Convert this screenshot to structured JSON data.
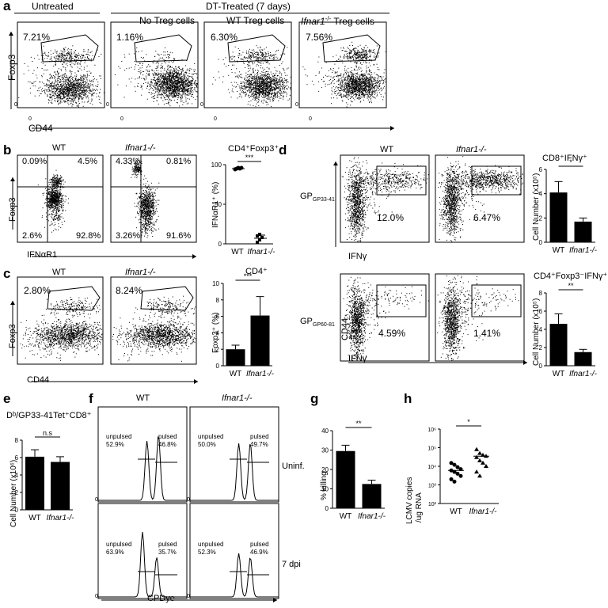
{
  "letters": {
    "a": "a",
    "b": "b",
    "c": "c",
    "d": "d",
    "e": "e",
    "f": "f",
    "g": "g",
    "h": "h"
  },
  "panel_a": {
    "header_untreated": "Untreated",
    "header_dt": "DT-Treated (7 days)",
    "sub1": "No Treg cells",
    "sub2": "WT Treg cells",
    "sub3_prefix": "Ifnar1",
    "sub3_sup": "-/-",
    "sub3_suffix": " Treg cells",
    "pct": [
      "7.21%",
      "1.16%",
      "6.30%",
      "7.56%"
    ],
    "yaxis": "Foxp3",
    "xaxis": "CD44",
    "tick0": "0"
  },
  "panel_b": {
    "titles": [
      "WT",
      "Ifnar1-/-"
    ],
    "quad_wt": [
      "0.09%",
      "4.5%",
      "2.6%",
      "92.8%"
    ],
    "quad_ko": [
      "4.33%",
      "0.81%",
      "3.26%",
      "91.6%"
    ],
    "yaxis": "Foxp3",
    "xaxis": "IFNαR1",
    "bar_title": "CD4⁺Foxp3⁺",
    "bar_ylabel": "IFNαR1⁺ (%)",
    "sig": "***",
    "ticks": [
      "0",
      "50",
      "100"
    ],
    "cat_wt": "WT",
    "cat_ko": "Ifnar1-/-"
  },
  "panel_c": {
    "titles": [
      "WT",
      "Ifnar1-/-"
    ],
    "pct": [
      "2.80%",
      "8.24%"
    ],
    "yaxis": "Foxp3",
    "xaxis": "CD44",
    "bar_title": "CD4⁺",
    "bar_ylabel": "Foxp3⁺ (%)",
    "sig": "***",
    "ticks": [
      "0",
      "2",
      "4",
      "6",
      "8",
      "10"
    ],
    "cat_wt": "WT",
    "cat_ko": "Ifnar1-/-"
  },
  "panel_d": {
    "titles": [
      "WT",
      "Ifnar1-/-"
    ],
    "row1_label": "GP33-41",
    "row2_label": "GP60-81",
    "pct_row1": [
      "12.0%",
      "6.47%"
    ],
    "pct_row2": [
      "4.59%",
      "1.41%"
    ],
    "yaxis": "CD44",
    "xaxis": "IFNγ",
    "bar1_title": "CD8⁺IFNγ⁺",
    "bar2_title": "CD4⁺Foxp3⁻IFNγ⁺",
    "bar_ylabel": "Cell Number (x10⁵)",
    "sig1": "*",
    "sig2": "**",
    "ticks1": [
      "0",
      "2",
      "4",
      "6"
    ],
    "ticks2": [
      "0",
      "2",
      "4",
      "6",
      "8"
    ],
    "cat_wt": "WT",
    "cat_ko": "Ifnar1-/-"
  },
  "panel_e": {
    "title": "Dᵇ/GP33-41Tet⁺CD8⁺",
    "ylabel": "Cell Number (x10⁶)",
    "sig": "n.s",
    "ticks": [
      "0",
      "2",
      "4",
      "6",
      "8"
    ],
    "cat_wt": "WT",
    "cat_ko": "Ifnar1-/-"
  },
  "panel_f": {
    "col_wt": "WT",
    "col_ko": "Ifnar1-/-",
    "row1": "Uninf.",
    "row2": "7 dpi",
    "unpulsed": "unpulsed",
    "pulsed": "pulsed",
    "vals": [
      [
        "52.9%",
        "46.8%"
      ],
      [
        "50.0%",
        "49.7%"
      ],
      [
        "63.9%",
        "35.7%"
      ],
      [
        "52.3%",
        "46.9%"
      ]
    ],
    "xaxis": "CPDye",
    "tick0": "0"
  },
  "panel_g": {
    "ylabel": "% killing",
    "sig": "**",
    "ticks": [
      "0",
      "10",
      "20",
      "30",
      "40"
    ],
    "cat_wt": "WT",
    "cat_ko": "Ifnar1-/-"
  },
  "panel_h": {
    "ylabel1": "LCMV copies",
    "ylabel2": "/ug RNA",
    "sig": "*",
    "ticks": [
      "10²",
      "10³",
      "10⁴",
      "10⁵",
      "10⁶"
    ],
    "cat_wt": "WT",
    "cat_ko": "Ifnar1-/-"
  },
  "chart_data": [
    {
      "type": "bar",
      "panel": "b",
      "categories": [
        "WT",
        "Ifnar1-/-"
      ],
      "values": [
        95,
        7
      ],
      "errors": [
        1,
        4
      ],
      "points": [
        [
          94,
          95,
          96,
          95,
          96
        ],
        [
          2,
          5,
          8,
          10,
          12
        ]
      ],
      "title": "CD4⁺Foxp3⁺",
      "ylabel": "IFNαR1⁺ (%)",
      "ylim": [
        0,
        100
      ]
    },
    {
      "type": "bar",
      "panel": "c",
      "categories": [
        "WT",
        "Ifnar1-/-"
      ],
      "values": [
        2.0,
        6.1
      ],
      "errors": [
        0.5,
        2.3
      ],
      "title": "CD4⁺",
      "ylabel": "Foxp3⁺ (%)",
      "ylim": [
        0,
        10
      ]
    },
    {
      "type": "bar",
      "panel": "d-top",
      "categories": [
        "WT",
        "Ifnar1-/-"
      ],
      "values": [
        4.1,
        1.7
      ],
      "errors": [
        0.9,
        0.3
      ],
      "title": "CD8⁺IFNγ⁺",
      "ylabel": "Cell Number (x10⁵)",
      "ylim": [
        0,
        6
      ]
    },
    {
      "type": "bar",
      "panel": "d-bottom",
      "categories": [
        "WT",
        "Ifnar1-/-"
      ],
      "values": [
        4.6,
        1.5
      ],
      "errors": [
        1.1,
        0.3
      ],
      "title": "CD4⁺Foxp3⁻IFNγ⁺",
      "ylabel": "Cell Number (x10⁵)",
      "ylim": [
        0,
        8
      ]
    },
    {
      "type": "bar",
      "panel": "e",
      "categories": [
        "WT",
        "Ifnar1-/-"
      ],
      "values": [
        6.1,
        5.5
      ],
      "errors": [
        0.8,
        0.6
      ],
      "title": "Dᵇ/GP33-41Tet⁺CD8⁺",
      "ylabel": "Cell Number (x10⁶)",
      "ylim": [
        0,
        8
      ]
    },
    {
      "type": "bar",
      "panel": "g",
      "categories": [
        "WT",
        "Ifnar1-/-"
      ],
      "values": [
        29.5,
        12.5
      ],
      "errors": [
        3,
        2
      ],
      "ylabel": "% killing",
      "ylim": [
        0,
        40
      ]
    },
    {
      "type": "scatter",
      "panel": "h",
      "categories": [
        "WT",
        "Ifnar1-/-"
      ],
      "log_y": true,
      "ylim": [
        100,
        1000000
      ],
      "means": [
        6000,
        35000
      ],
      "points": [
        [
          15000,
          12000,
          9000,
          7000,
          6000,
          5000,
          4000,
          3000,
          2000,
          1500
        ],
        [
          80000,
          50000,
          40000,
          35000,
          30000,
          20000,
          15000,
          10000,
          5000,
          3000
        ]
      ],
      "ylabel": "LCMV copies /ug RNA"
    }
  ]
}
